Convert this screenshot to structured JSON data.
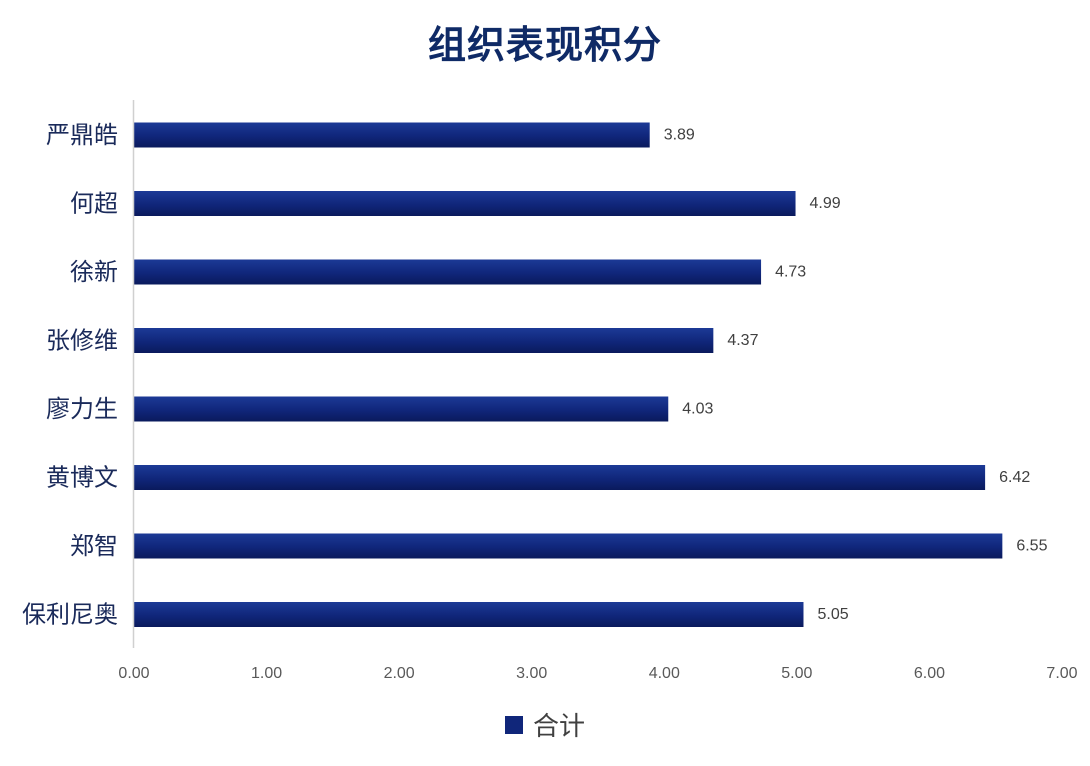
{
  "chart_data": {
    "type": "bar",
    "orientation": "horizontal",
    "title": "组织表现积分",
    "categories": [
      "严鼎皓",
      "何超",
      "徐新",
      "张修维",
      "廖力生",
      "黄博文",
      "郑智",
      "保利尼奥"
    ],
    "series": [
      {
        "name": "合计",
        "values": [
          3.89,
          4.99,
          4.73,
          4.37,
          4.03,
          6.42,
          6.55,
          5.05
        ],
        "color": "#10267a"
      }
    ],
    "x_ticks": [
      "0.00",
      "1.00",
      "2.00",
      "3.00",
      "4.00",
      "5.00",
      "6.00",
      "7.00"
    ],
    "xlim": [
      0,
      7
    ],
    "grid": false,
    "data_labels": true,
    "legend_position": "bottom"
  }
}
